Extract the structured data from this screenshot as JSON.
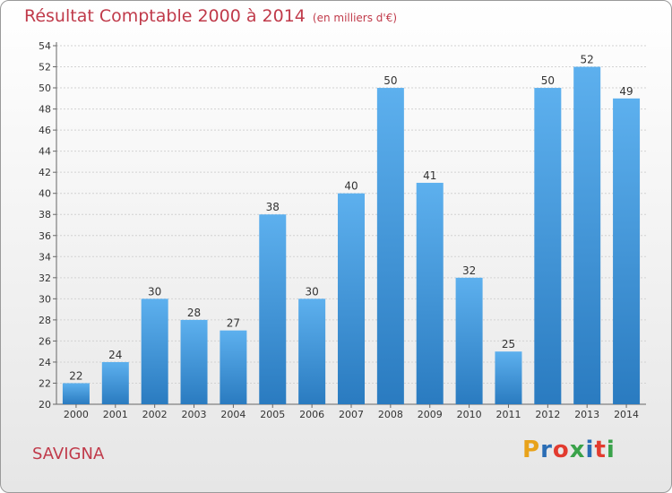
{
  "title": "Résultat Comptable 2000 à 2014",
  "subtitle": "(en milliers d'€)",
  "place": "SAVIGNA",
  "logo": {
    "letters": [
      "P",
      "r",
      "o",
      "x",
      "i",
      "t",
      "i"
    ],
    "colors": [
      "#e8a21a",
      "#2a6db5",
      "#e23b2f",
      "#3aa24a",
      "#2a6db5",
      "#e23b2f",
      "#3aa24a"
    ]
  },
  "bar_color_top": "#5db0ee",
  "bar_color_bottom": "#2a7bc0",
  "chart_data": {
    "type": "bar",
    "categories": [
      "2000",
      "2001",
      "2002",
      "2003",
      "2004",
      "2005",
      "2006",
      "2007",
      "2008",
      "2009",
      "2010",
      "2011",
      "2012",
      "2013",
      "2014"
    ],
    "values": [
      22,
      24,
      30,
      28,
      27,
      38,
      30,
      40,
      50,
      41,
      32,
      25,
      50,
      52,
      49
    ],
    "ylim": [
      20,
      54
    ],
    "yticks": [
      20,
      22,
      24,
      26,
      28,
      30,
      32,
      34,
      36,
      38,
      40,
      42,
      44,
      46,
      48,
      50,
      52,
      54
    ],
    "grid": true
  }
}
